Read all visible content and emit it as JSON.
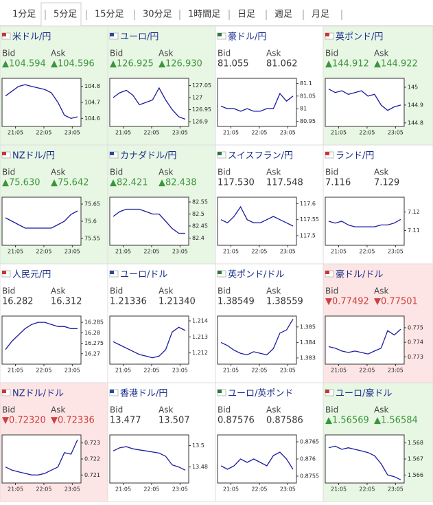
{
  "tabs": [
    "1分足",
    "5分足",
    "15分足",
    "30分足",
    "1時間足",
    "日足",
    "週足",
    "月足"
  ],
  "selected_tab": 1,
  "bid_label": "Bid",
  "ask_label": "Ask",
  "times": [
    "21:05",
    "22:05",
    "23:05"
  ],
  "tiles": [
    {
      "name": "米ドル/円",
      "trend": "up",
      "bid": "▲104.594",
      "ask": "▲104.596",
      "ylim": [
        104.55,
        104.85
      ],
      "yticks": [
        104.8,
        104.7,
        104.6
      ],
      "close": [
        104.74,
        104.77,
        104.8,
        104.81,
        104.8,
        104.79,
        104.78,
        104.76,
        104.7,
        104.62,
        104.6,
        104.61
      ]
    },
    {
      "name": "ユーロ/円",
      "trend": "up",
      "bid": "▲126.925",
      "ask": "▲126.930",
      "ylim": [
        126.88,
        127.08
      ],
      "yticks": [
        127.05,
        127,
        126.95,
        126.9
      ],
      "close": [
        127.0,
        127.02,
        127.03,
        127.01,
        126.97,
        126.98,
        126.99,
        127.04,
        126.99,
        126.95,
        126.92,
        126.91
      ]
    },
    {
      "name": "豪ドル/円",
      "trend": "none",
      "bid": "81.055",
      "ask": "81.062",
      "ylim": [
        80.93,
        81.12
      ],
      "yticks": [
        81.1,
        81.05,
        81,
        80.95
      ],
      "close": [
        81.01,
        81.0,
        81.0,
        80.99,
        81.0,
        80.99,
        80.99,
        81.0,
        81.0,
        81.06,
        81.03,
        81.05
      ]
    },
    {
      "name": "英ポンド/円",
      "trend": "up",
      "bid": "▲144.912",
      "ask": "▲144.922",
      "ylim": [
        144.78,
        145.05
      ],
      "yticks": [
        145,
        144.9,
        144.8
      ],
      "close": [
        144.99,
        144.97,
        144.98,
        144.96,
        144.97,
        144.98,
        144.95,
        144.96,
        144.9,
        144.87,
        144.89,
        144.9
      ]
    },
    {
      "name": "NZドル/円",
      "trend": "up",
      "bid": "▲75.630",
      "ask": "▲75.642",
      "ylim": [
        75.53,
        75.67
      ],
      "yticks": [
        75.65,
        75.6,
        75.55
      ],
      "close": [
        75.61,
        75.6,
        75.59,
        75.58,
        75.58,
        75.58,
        75.58,
        75.58,
        75.59,
        75.6,
        75.62,
        75.63
      ]
    },
    {
      "name": "カナダドル/円",
      "trend": "up",
      "bid": "▲82.421",
      "ask": "▲82.438",
      "ylim": [
        82.37,
        82.57
      ],
      "yticks": [
        82.55,
        82.5,
        82.45,
        82.4
      ],
      "close": [
        82.49,
        82.51,
        82.52,
        82.52,
        82.52,
        82.51,
        82.5,
        82.5,
        82.47,
        82.44,
        82.42,
        82.42
      ]
    },
    {
      "name": "スイスフラン/円",
      "trend": "none",
      "bid": "117.530",
      "ask": "117.548",
      "ylim": [
        117.47,
        117.62
      ],
      "yticks": [
        117.6,
        117.55,
        117.5
      ],
      "close": [
        117.55,
        117.54,
        117.56,
        117.59,
        117.55,
        117.54,
        117.54,
        117.55,
        117.56,
        117.55,
        117.54,
        117.53
      ]
    },
    {
      "name": "ランド/円",
      "trend": "none",
      "bid": "7.116",
      "ask": "7.129",
      "ylim": [
        7.102,
        7.128
      ],
      "yticks": [
        7.12,
        7.11
      ],
      "close": [
        7.115,
        7.114,
        7.115,
        7.113,
        7.112,
        7.112,
        7.112,
        7.112,
        7.113,
        7.113,
        7.114,
        7.116
      ]
    },
    {
      "name": "人民元/円",
      "trend": "none",
      "bid": "16.282",
      "ask": "16.312",
      "ylim": [
        16.265,
        16.288
      ],
      "yticks": [
        16.285,
        16.28,
        16.275,
        16.27
      ],
      "close": [
        16.272,
        16.276,
        16.279,
        16.282,
        16.284,
        16.285,
        16.285,
        16.284,
        16.283,
        16.283,
        16.282,
        16.282
      ]
    },
    {
      "name": "ユーロ/ドル",
      "trend": "none",
      "bid": "1.21336",
      "ask": "1.21340",
      "ylim": [
        1.2113,
        1.2143
      ],
      "yticks": [
        1.214,
        1.213,
        1.212
      ],
      "close": [
        1.2127,
        1.2125,
        1.2123,
        1.2121,
        1.2119,
        1.2118,
        1.2117,
        1.2118,
        1.2122,
        1.2133,
        1.2136,
        1.2134
      ]
    },
    {
      "name": "英ポンド/ドル",
      "trend": "none",
      "bid": "1.38549",
      "ask": "1.38559",
      "ylim": [
        1.3826,
        1.3857
      ],
      "yticks": [
        1.385,
        1.384,
        1.383
      ],
      "close": [
        1.384,
        1.3838,
        1.3835,
        1.3833,
        1.3832,
        1.3834,
        1.3833,
        1.3832,
        1.3836,
        1.3846,
        1.3848,
        1.3855
      ]
    },
    {
      "name": "豪ドル/ドル",
      "trend": "down",
      "bid": "▼0.77492",
      "ask": "▼0.77501",
      "ylim": [
        0.7725,
        0.7758
      ],
      "yticks": [
        0.775,
        0.774,
        0.773
      ],
      "close": [
        0.7737,
        0.7736,
        0.7734,
        0.7733,
        0.7734,
        0.7733,
        0.7732,
        0.7734,
        0.7736,
        0.7748,
        0.7745,
        0.7749
      ]
    },
    {
      "name": "NZドル/ドル",
      "trend": "down",
      "bid": "▼0.72320",
      "ask": "▼0.72336",
      "ylim": [
        0.7205,
        0.7235
      ],
      "yticks": [
        0.723,
        0.722,
        0.721
      ],
      "close": [
        0.7215,
        0.7213,
        0.7212,
        0.7211,
        0.721,
        0.721,
        0.7211,
        0.7213,
        0.7215,
        0.7224,
        0.7223,
        0.7232
      ]
    },
    {
      "name": "香港ドル/円",
      "trend": "none",
      "bid": "13.477",
      "ask": "13.507",
      "ylim": [
        13.465,
        13.51
      ],
      "yticks": [
        13.5,
        13.48
      ],
      "close": [
        13.495,
        13.498,
        13.499,
        13.497,
        13.496,
        13.495,
        13.494,
        13.493,
        13.49,
        13.482,
        13.48,
        13.477
      ]
    },
    {
      "name": "ユーロ/英ポンド",
      "trend": "none",
      "bid": "0.87576",
      "ask": "0.87586",
      "ylim": [
        0.8753,
        0.8767
      ],
      "yticks": [
        0.8765,
        0.876,
        0.8755
      ],
      "close": [
        0.8758,
        0.8757,
        0.8758,
        0.876,
        0.8759,
        0.876,
        0.8759,
        0.8758,
        0.8761,
        0.8762,
        0.876,
        0.8757
      ]
    },
    {
      "name": "ユーロ/豪ドル",
      "trend": "up",
      "bid": "▲1.56569",
      "ask": "▲1.56584",
      "ylim": [
        1.5655,
        1.5685
      ],
      "yticks": [
        1.568,
        1.567,
        1.566
      ],
      "close": [
        1.5677,
        1.5678,
        1.5676,
        1.5677,
        1.5676,
        1.5675,
        1.5674,
        1.5672,
        1.5667,
        1.566,
        1.5659,
        1.5657
      ]
    }
  ]
}
